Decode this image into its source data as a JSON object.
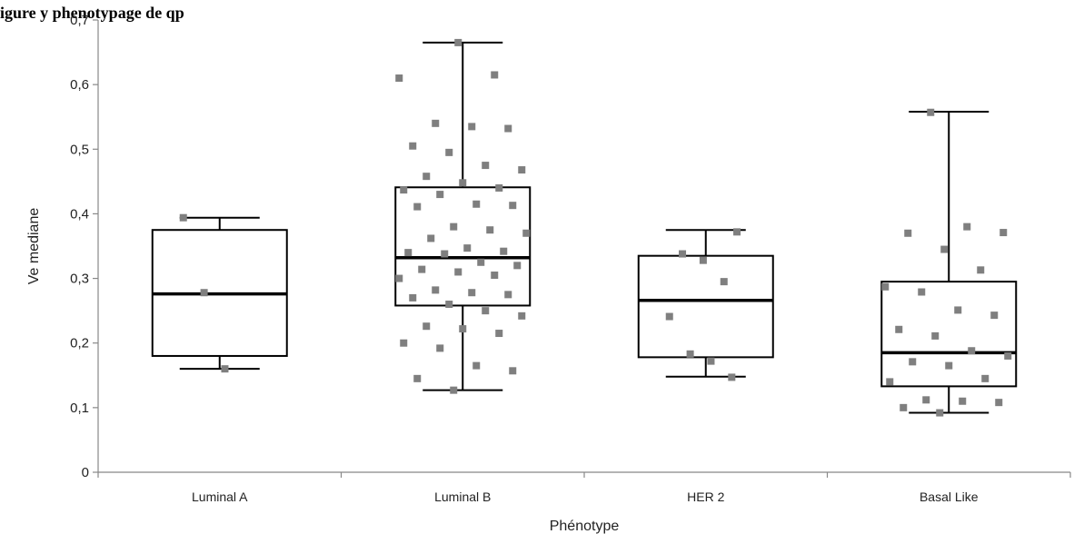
{
  "header_fragment": "igure                                                                                                    y               phenotypage de qp",
  "chart_data": {
    "type": "box",
    "xlabel": "Phénotype",
    "ylabel": "Ve mediane",
    "ylim": [
      0,
      0.7
    ],
    "yticks": [
      "0",
      "0,1",
      "0,2",
      "0,3",
      "0,4",
      "0,5",
      "0,6",
      "0,7"
    ],
    "ytick_values": [
      0,
      0.1,
      0.2,
      0.3,
      0.4,
      0.5,
      0.6,
      0.7
    ],
    "categories": [
      "Luminal A",
      "Luminal B",
      "HER 2",
      "Basal Like"
    ],
    "boxes": [
      {
        "category": "Luminal A",
        "min": 0.16,
        "q1": 0.18,
        "median": 0.276,
        "q3": 0.375,
        "max": 0.394
      },
      {
        "category": "Luminal B",
        "min": 0.127,
        "q1": 0.258,
        "median": 0.332,
        "q3": 0.441,
        "max": 0.665
      },
      {
        "category": "HER 2",
        "min": 0.148,
        "q1": 0.178,
        "median": 0.266,
        "q3": 0.335,
        "max": 0.375
      },
      {
        "category": "Basal Like",
        "min": 0.092,
        "q1": 0.133,
        "median": 0.185,
        "q3": 0.295,
        "max": 0.558
      }
    ],
    "points": [
      {
        "category": "Luminal A",
        "values": [
          0.394,
          0.278,
          0.16
        ]
      },
      {
        "category": "Luminal B",
        "values": [
          0.665,
          0.615,
          0.61,
          0.54,
          0.535,
          0.532,
          0.505,
          0.495,
          0.475,
          0.468,
          0.458,
          0.448,
          0.44,
          0.437,
          0.43,
          0.415,
          0.413,
          0.411,
          0.38,
          0.375,
          0.37,
          0.362,
          0.347,
          0.342,
          0.34,
          0.338,
          0.325,
          0.32,
          0.314,
          0.31,
          0.305,
          0.3,
          0.282,
          0.278,
          0.275,
          0.27,
          0.26,
          0.25,
          0.242,
          0.226,
          0.222,
          0.215,
          0.2,
          0.192,
          0.165,
          0.157,
          0.145,
          0.127
        ]
      },
      {
        "category": "HER 2",
        "values": [
          0.372,
          0.338,
          0.328,
          0.295,
          0.241,
          0.183,
          0.172,
          0.147
        ]
      },
      {
        "category": "Basal Like",
        "values": [
          0.557,
          0.38,
          0.371,
          0.37,
          0.345,
          0.313,
          0.287,
          0.279,
          0.251,
          0.243,
          0.221,
          0.211,
          0.188,
          0.18,
          0.171,
          0.165,
          0.145,
          0.14,
          0.112,
          0.11,
          0.108,
          0.1,
          0.092
        ]
      }
    ]
  }
}
